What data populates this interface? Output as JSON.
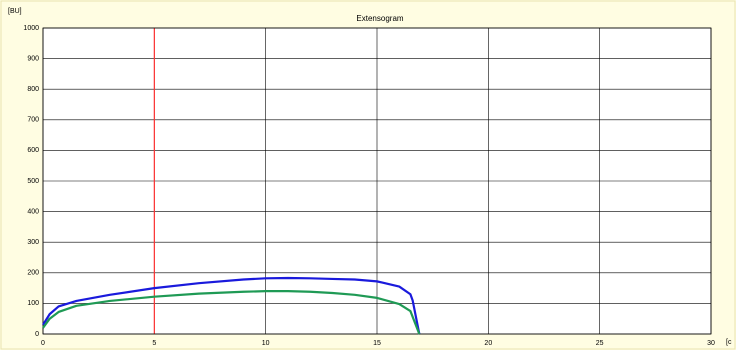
{
  "chart_data": {
    "type": "line",
    "title": "Extensogram",
    "y_label": "[BU]",
    "x_label": "[c",
    "xlim": [
      0,
      30
    ],
    "ylim": [
      0,
      1000
    ],
    "xticks": [
      0,
      5,
      10,
      15,
      20,
      25,
      30
    ],
    "yticks": [
      0,
      100,
      200,
      300,
      400,
      500,
      600,
      700,
      800,
      900,
      1000
    ],
    "grid": true,
    "marker_x": 5,
    "marker_color": "#ff3030",
    "series": [
      {
        "color": "#1a1adc",
        "x": [
          0,
          0.3,
          0.7,
          1.5,
          3,
          5,
          7,
          9,
          10,
          11,
          12,
          13,
          14,
          15,
          16,
          16.5,
          16.6,
          16.9
        ],
        "values": [
          30,
          65,
          90,
          108,
          128,
          150,
          166,
          178,
          182,
          183,
          182,
          180,
          178,
          172,
          155,
          130,
          110,
          0
        ]
      },
      {
        "color": "#1f9a55",
        "x": [
          0,
          0.3,
          0.7,
          1.5,
          3,
          5,
          7,
          9,
          10,
          11,
          12,
          13,
          14,
          15,
          16,
          16.5,
          16.9
        ],
        "values": [
          20,
          50,
          72,
          92,
          108,
          122,
          132,
          138,
          140,
          140,
          138,
          134,
          128,
          118,
          98,
          75,
          0
        ]
      }
    ]
  }
}
